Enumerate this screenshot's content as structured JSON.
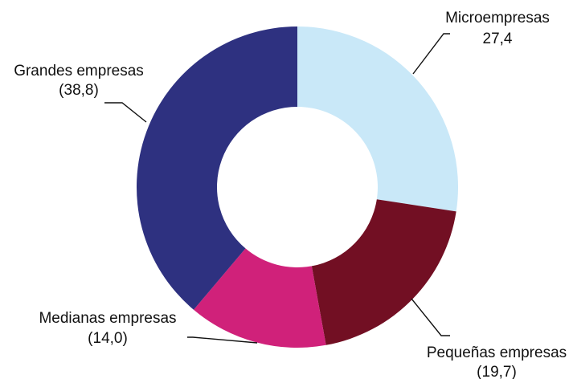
{
  "chart_data": {
    "type": "pie",
    "variant": "donut",
    "title": "",
    "slices": [
      {
        "name": "Microempresas",
        "value": 27.4,
        "value_label": "27,4",
        "color": "#c9e8f8"
      },
      {
        "name": "Pequeñas empresas",
        "value": 19.7,
        "value_label": "(19,7)",
        "color": "#720f23"
      },
      {
        "name": "Medianas empresas",
        "value": 14.0,
        "value_label": "(14,0)",
        "color": "#d0217a"
      },
      {
        "name": "Grandes empresas",
        "value": 38.8,
        "value_label": "(38,8)",
        "color": "#2e3180"
      }
    ],
    "start_angle_deg": 0,
    "direction": "clockwise",
    "legend": "none"
  }
}
